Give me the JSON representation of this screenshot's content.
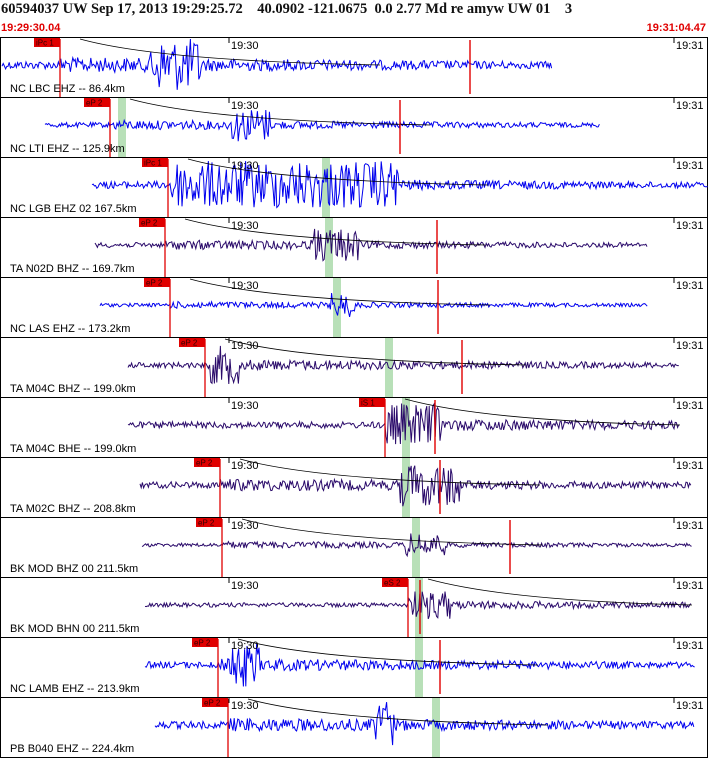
{
  "header": {
    "title": "60594037 UW Sep 17, 2013 19:29:25.72    40.0902 -121.0675  0.0 2.77 Md re amyw UW 01    3",
    "start_time": "19:29:30.04",
    "end_time": "19:31:04.47"
  },
  "colors": {
    "wave_blue": "#0000ee",
    "wave_purple": "#2a0a6a",
    "pick_red": "#e00000",
    "marker_green": "#b8e0b8",
    "grid": "#000000"
  },
  "chart_data": {
    "type": "line",
    "title": "",
    "x_range": [
      "19:29:30.04",
      "19:31:04.47"
    ],
    "time_ticks": [
      "19:30",
      "19:31"
    ],
    "traces": [
      {
        "label": "NC LBC EHZ -- 86.4km",
        "pick": "iPc 1",
        "color": "blue"
      },
      {
        "label": "NC LTI EHZ -- 125.9km",
        "pick": "eP 2",
        "color": "blue"
      },
      {
        "label": "NC LGB EHZ 02 167.5km",
        "pick": "iPc 1",
        "color": "blue"
      },
      {
        "label": "TA N02D BHZ -- 169.7km",
        "pick": "eP 2",
        "color": "purple"
      },
      {
        "label": "NC LAS EHZ -- 173.2km",
        "pick": "eP 2",
        "color": "blue"
      },
      {
        "label": "TA M04C BHZ -- 199.0km",
        "pick": "eP 2",
        "color": "purple"
      },
      {
        "label": "TA M04C BHE -- 199.0km",
        "pick": "iS 1",
        "color": "purple"
      },
      {
        "label": "TA M02C BHZ -- 208.8km",
        "pick": "eP 2",
        "color": "purple"
      },
      {
        "label": "BK MOD BHZ 00 211.5km",
        "pick": "eP 2",
        "color": "purple"
      },
      {
        "label": "BK MOD BHN 00 211.5km",
        "pick": "eS 2",
        "color": "purple"
      },
      {
        "label": "NC LAMB EHZ -- 213.9km",
        "pick": "eP 2",
        "color": "blue"
      },
      {
        "label": "PB B040 EHZ -- 224.4km",
        "pick": "eP 2",
        "color": "blue"
      }
    ]
  }
}
